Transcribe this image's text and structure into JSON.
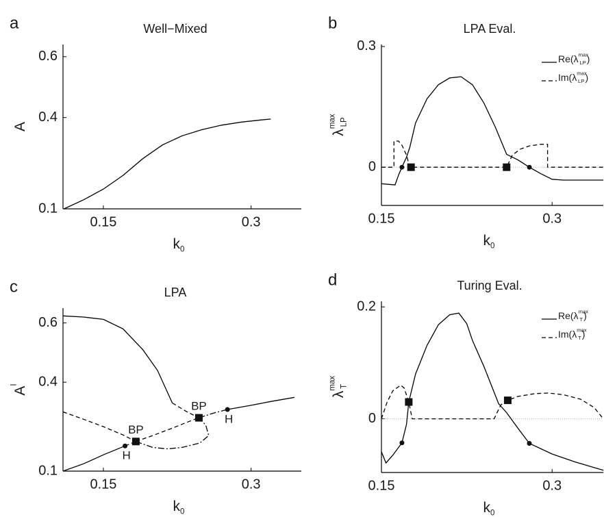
{
  "chart_data": [
    {
      "type": "line",
      "panel_label": "a",
      "title": "Well−Mixed",
      "x_label": {
        "base": "k",
        "sub": "0"
      },
      "y_label": {
        "base": "A"
      },
      "xlim": [
        0.109,
        0.351
      ],
      "ylim": [
        0.1,
        0.64
      ],
      "xticks": [
        0.15,
        0.3
      ],
      "yticks": [
        0.1,
        0.4,
        0.6
      ],
      "series": [
        {
          "color": "#000000",
          "style": "solid",
          "x": [
            0.11,
            0.13,
            0.15,
            0.17,
            0.19,
            0.21,
            0.23,
            0.25,
            0.27,
            0.29,
            0.31,
            0.32
          ],
          "values": [
            0.1,
            0.13,
            0.165,
            0.21,
            0.265,
            0.31,
            0.34,
            0.36,
            0.375,
            0.385,
            0.392,
            0.395
          ]
        }
      ]
    },
    {
      "type": "line",
      "panel_label": "b",
      "title": "LPA Eval.",
      "x_label": {
        "base": "k",
        "sub": "0"
      },
      "y_label": {
        "base": "λ",
        "sup": "max",
        "sub": "LP"
      },
      "xlim": [
        0.15,
        0.345
      ],
      "ylim": [
        -0.095,
        0.305
      ],
      "xticks": [
        0.15,
        0.3
      ],
      "yticks": [
        0,
        0.3
      ],
      "zero_line": true,
      "series": [
        {
          "name": {
            "base": "Re(λ",
            "sup": "max",
            "sub": "LP",
            "tail": ")"
          },
          "color": "#000000",
          "style": "solid",
          "x": [
            0.15,
            0.162,
            0.165,
            0.168,
            0.172,
            0.175,
            0.18,
            0.19,
            0.2,
            0.21,
            0.22,
            0.23,
            0.24,
            0.25,
            0.26,
            0.27,
            0.28,
            0.29,
            0.3,
            0.31,
            0.345
          ],
          "values": [
            -0.041,
            -0.044,
            -0.02,
            0,
            0.025,
            0.05,
            0.11,
            0.17,
            0.205,
            0.222,
            0.225,
            0.205,
            0.16,
            0.1,
            0.032,
            0.018,
            0,
            -0.016,
            -0.03,
            -0.032,
            -0.032
          ]
        },
        {
          "name": {
            "base": "Im(λ",
            "sup": "max",
            "sub": "LP",
            "tail": ")"
          },
          "color": "#000000",
          "style": "dashed",
          "x": [
            0.15,
            0.161,
            0.161,
            0.165,
            0.168,
            0.172,
            0.175,
            0.26,
            0.265,
            0.272,
            0.28,
            0.29,
            0.296,
            0.296,
            0.345
          ],
          "values": [
            0,
            0,
            0.065,
            0.065,
            0.055,
            0.03,
            0,
            0,
            0.03,
            0.045,
            0.053,
            0.057,
            0.057,
            0,
            0
          ]
        }
      ],
      "markers": [
        {
          "shape": "circle",
          "x": 0.168,
          "y": 0
        },
        {
          "shape": "square",
          "x": 0.176,
          "y": 0
        },
        {
          "shape": "square",
          "x": 0.26,
          "y": 0
        },
        {
          "shape": "circle",
          "x": 0.28,
          "y": 0
        }
      ]
    },
    {
      "type": "line",
      "panel_label": "c",
      "title": "LPA",
      "x_label": {
        "base": "k",
        "sub": "0"
      },
      "y_label": {
        "base": "A",
        "sup": "I"
      },
      "xlim": [
        0.109,
        0.351
      ],
      "ylim": [
        0.1,
        0.65
      ],
      "xticks": [
        0.15,
        0.3
      ],
      "yticks": [
        0.1,
        0.4,
        0.6
      ],
      "series": [
        {
          "color": "#000000",
          "style": "solid",
          "x": [
            0.109,
            0.13,
            0.15,
            0.17,
            0.19,
            0.205,
            0.22
          ],
          "values": [
            0.624,
            0.62,
            0.612,
            0.58,
            0.51,
            0.44,
            0.33
          ]
        },
        {
          "color": "#000000",
          "style": "dashed",
          "x": [
            0.22,
            0.235,
            0.247
          ],
          "values": [
            0.33,
            0.3,
            0.28
          ]
        },
        {
          "color": "#000000",
          "style": "solid",
          "x": [
            0.109,
            0.13,
            0.15,
            0.172
          ],
          "values": [
            0.1,
            0.125,
            0.155,
            0.185
          ]
        },
        {
          "color": "#000000",
          "style": "dashed",
          "x": [
            0.172,
            0.183
          ],
          "values": [
            0.185,
            0.2
          ]
        },
        {
          "color": "#000000",
          "style": "dashed",
          "x": [
            0.109,
            0.13,
            0.15,
            0.17,
            0.183
          ],
          "values": [
            0.3,
            0.275,
            0.25,
            0.222,
            0.2
          ]
        },
        {
          "color": "#000000",
          "style": "dashed",
          "x": [
            0.183,
            0.2,
            0.22,
            0.235,
            0.247
          ],
          "values": [
            0.2,
            0.22,
            0.245,
            0.265,
            0.28
          ]
        },
        {
          "color": "#000000",
          "style": "dashdot",
          "x": [
            0.183,
            0.2,
            0.215,
            0.23,
            0.248,
            0.257,
            0.254,
            0.247
          ],
          "values": [
            0.2,
            0.18,
            0.175,
            0.18,
            0.195,
            0.22,
            0.255,
            0.28
          ]
        },
        {
          "color": "#000000",
          "style": "dashdot",
          "x": [
            0.247,
            0.262,
            0.276
          ],
          "values": [
            0.28,
            0.296,
            0.308
          ]
        },
        {
          "color": "#000000",
          "style": "solid",
          "x": [
            0.276,
            0.3,
            0.32,
            0.344
          ],
          "values": [
            0.308,
            0.322,
            0.335,
            0.349
          ]
        }
      ],
      "markers": [
        {
          "shape": "circle",
          "x": 0.172,
          "y": 0.185,
          "label": "H"
        },
        {
          "shape": "square",
          "x": 0.183,
          "y": 0.2,
          "label": "BP"
        },
        {
          "shape": "square",
          "x": 0.247,
          "y": 0.28,
          "label": "BP"
        },
        {
          "shape": "circle",
          "x": 0.276,
          "y": 0.308,
          "label": "H"
        }
      ]
    },
    {
      "type": "line",
      "panel_label": "d",
      "title": "Turing Eval.",
      "x_label": {
        "base": "k",
        "sub": "0"
      },
      "y_label": {
        "base": "λ",
        "sup": "max",
        "sub": "T"
      },
      "xlim": [
        0.15,
        0.345
      ],
      "ylim": [
        -0.096,
        0.21
      ],
      "xticks": [
        0.15,
        0.3
      ],
      "yticks": [
        0,
        0.2
      ],
      "zero_line": true,
      "series": [
        {
          "name": {
            "base": "Re(λ",
            "sup": "max",
            "sub": "T",
            "tail": ")"
          },
          "color": "#000000",
          "style": "solid",
          "x": [
            0.15,
            0.154,
            0.16,
            0.168,
            0.172,
            0.174,
            0.18,
            0.19,
            0.2,
            0.21,
            0.218,
            0.225,
            0.23,
            0.24,
            0.253,
            0.26,
            0.27,
            0.28,
            0.3,
            0.32,
            0.345
          ],
          "values": [
            -0.059,
            -0.079,
            -0.065,
            -0.043,
            -0.01,
            0.03,
            0.08,
            0.131,
            0.168,
            0.186,
            0.189,
            0.17,
            0.14,
            0.094,
            0.027,
            0.011,
            -0.017,
            -0.044,
            -0.063,
            -0.077,
            -0.092
          ]
        },
        {
          "name": {
            "base": "Im(λ",
            "sup": "max",
            "sub": "T",
            "tail": ")"
          },
          "color": "#000000",
          "style": "dashed",
          "x": [
            0.15,
            0.155,
            0.16,
            0.167,
            0.17,
            0.174,
            0.177,
            0.249,
            0.255,
            0.261,
            0.27,
            0.285,
            0.297,
            0.31,
            0.325,
            0.337,
            0.345
          ],
          "values": [
            0,
            0.03,
            0.05,
            0.06,
            0.055,
            0.03,
            0,
            0,
            0.025,
            0.033,
            0.04,
            0.045,
            0.046,
            0.043,
            0.035,
            0.02,
            0
          ]
        }
      ],
      "markers": [
        {
          "shape": "circle",
          "x": 0.168,
          "y": -0.043
        },
        {
          "shape": "square",
          "x": 0.174,
          "y": 0.03
        },
        {
          "shape": "square",
          "x": 0.261,
          "y": 0.033
        },
        {
          "shape": "circle",
          "x": 0.28,
          "y": -0.044
        }
      ]
    }
  ]
}
